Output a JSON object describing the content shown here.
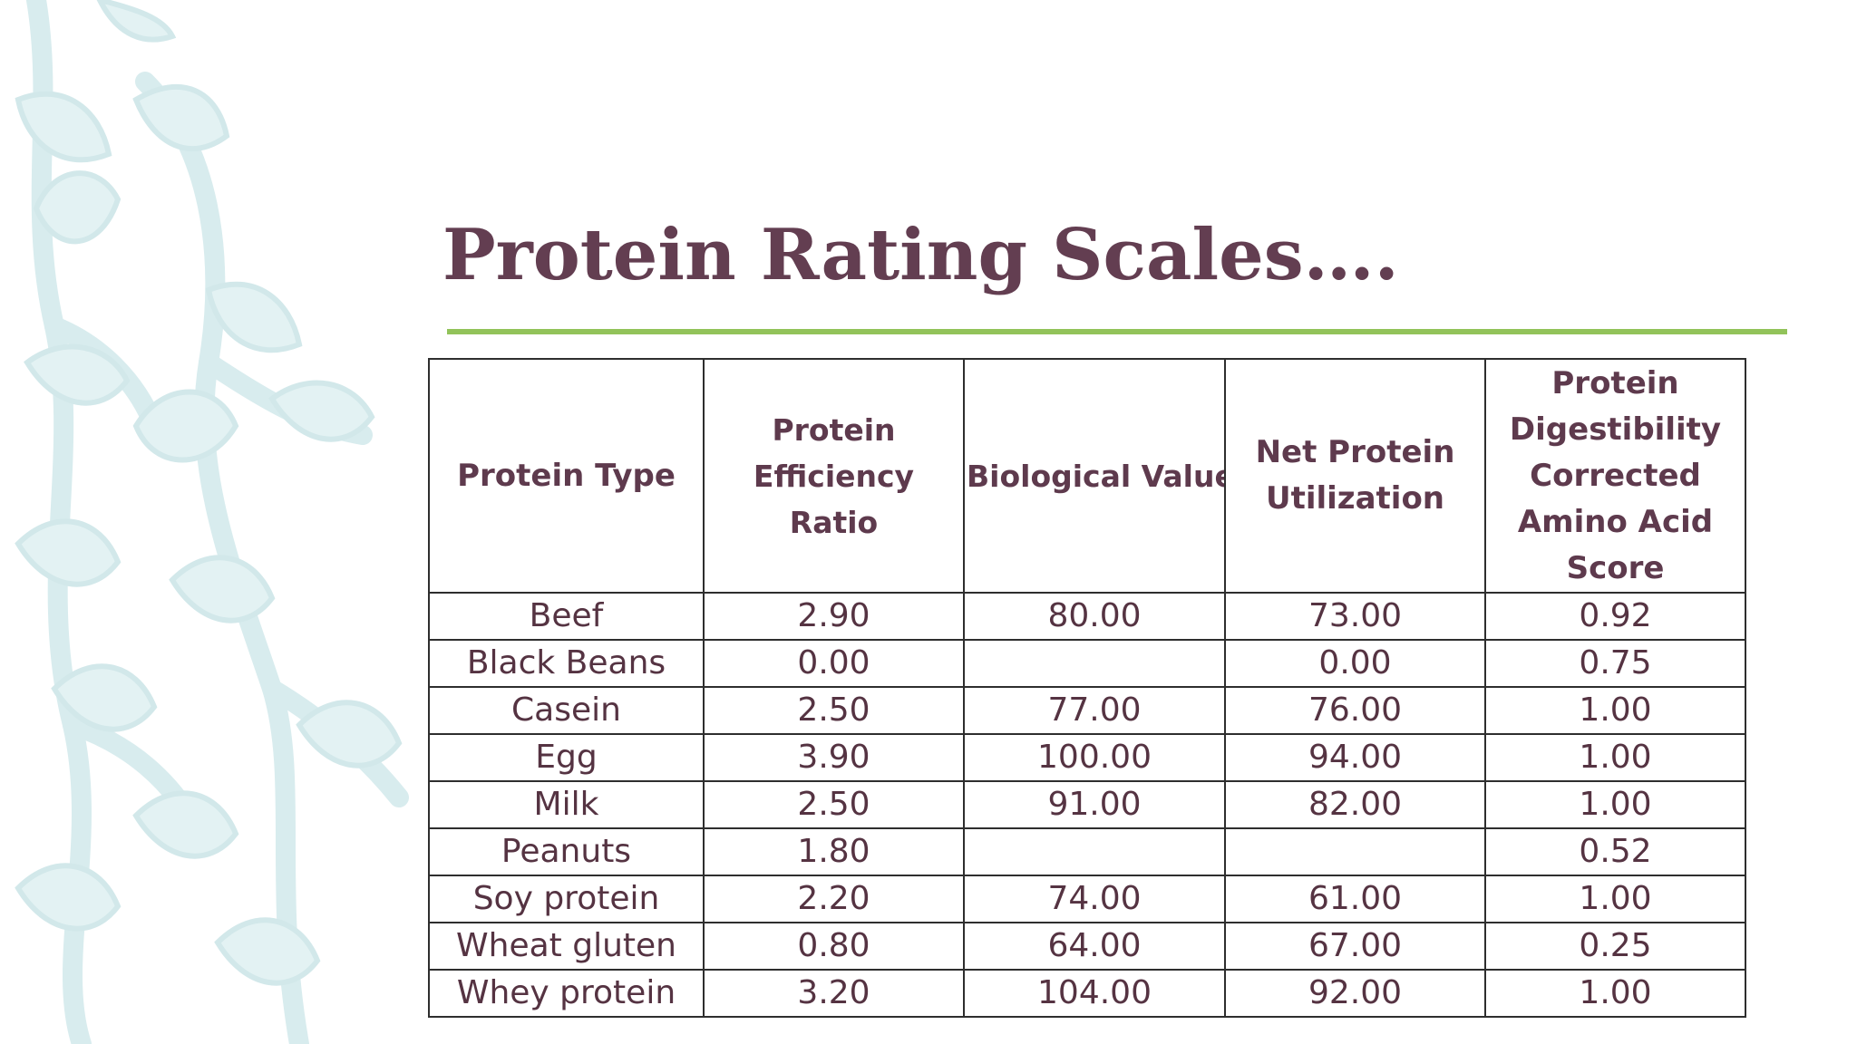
{
  "slide": {
    "title": "Protein Rating Scales….",
    "accent_color": "#92c35a",
    "title_color": "#633e51",
    "decoration": "leafy-vine-pattern"
  },
  "table": {
    "headers": [
      "Protein Type",
      "Protein Efficiency Ratio",
      "Biological Value",
      "Net Protein Utilization",
      "Protein Digestibility Corrected Amino Acid Score"
    ],
    "rows": [
      [
        "Beef",
        "2.90",
        "80.00",
        "73.00",
        "0.92"
      ],
      [
        "Black Beans",
        "0.00",
        "",
        "0.00",
        "0.75"
      ],
      [
        "Casein",
        "2.50",
        "77.00",
        "76.00",
        "1.00"
      ],
      [
        "Egg",
        "3.90",
        "100.00",
        "94.00",
        "1.00"
      ],
      [
        "Milk",
        "2.50",
        "91.00",
        "82.00",
        "1.00"
      ],
      [
        "Peanuts",
        "1.80",
        "",
        "",
        "0.52"
      ],
      [
        "Soy protein",
        "2.20",
        "74.00",
        "61.00",
        "1.00"
      ],
      [
        "Wheat gluten",
        "0.80",
        "64.00",
        "67.00",
        "0.25"
      ],
      [
        "Whey protein",
        "3.20",
        "104.00",
        "92.00",
        "1.00"
      ]
    ]
  }
}
